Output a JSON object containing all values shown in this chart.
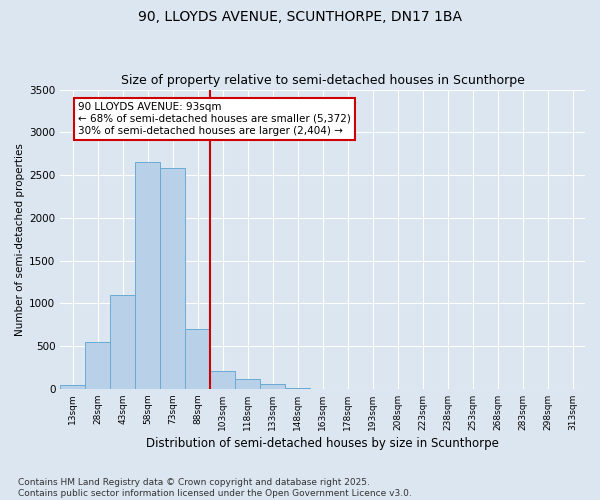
{
  "title1": "90, LLOYDS AVENUE, SCUNTHORPE, DN17 1BA",
  "title2": "Size of property relative to semi-detached houses in Scunthorpe",
  "xlabel": "Distribution of semi-detached houses by size in Scunthorpe",
  "ylabel": "Number of semi-detached properties",
  "bin_labels": [
    "13sqm",
    "28sqm",
    "43sqm",
    "58sqm",
    "73sqm",
    "88sqm",
    "103sqm",
    "118sqm",
    "133sqm",
    "148sqm",
    "163sqm",
    "178sqm",
    "193sqm",
    "208sqm",
    "223sqm",
    "238sqm",
    "253sqm",
    "268sqm",
    "283sqm",
    "298sqm",
    "313sqm"
  ],
  "bar_heights": [
    40,
    550,
    1100,
    2650,
    2580,
    700,
    210,
    110,
    60,
    10,
    2,
    0,
    0,
    0,
    0,
    0,
    0,
    0,
    0,
    0,
    0
  ],
  "bar_color": "#b8d0e8",
  "bar_edge_color": "#6aaad4",
  "red_line_x": 5.5,
  "annotation_text": "90 LLOYDS AVENUE: 93sqm\n← 68% of semi-detached houses are smaller (5,372)\n30% of semi-detached houses are larger (2,404) →",
  "annotation_box_color": "#ffffff",
  "annotation_box_edge_color": "#cc0000",
  "red_line_color": "#cc0000",
  "ylim": [
    0,
    3500
  ],
  "yticks": [
    0,
    500,
    1000,
    1500,
    2000,
    2500,
    3000,
    3500
  ],
  "footer_text": "Contains HM Land Registry data © Crown copyright and database right 2025.\nContains public sector information licensed under the Open Government Licence v3.0.",
  "background_color": "#dce6f0",
  "plot_background_color": "#dce6f0",
  "grid_color": "#ffffff",
  "title_fontsize": 10,
  "subtitle_fontsize": 9,
  "annotation_fontsize": 7.5,
  "footer_fontsize": 6.5,
  "ylabel_fontsize": 7.5,
  "xlabel_fontsize": 8.5
}
